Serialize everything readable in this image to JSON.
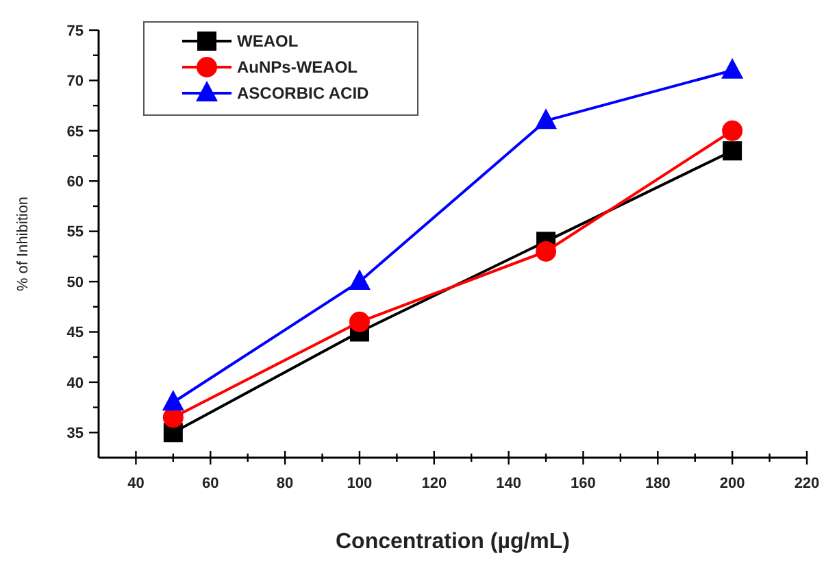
{
  "chart_data": {
    "type": "line",
    "xlabel": "Concentration (µg/mL)",
    "ylabel": "% of Inhibition",
    "x": [
      50,
      100,
      150,
      200
    ],
    "series": [
      {
        "name": "WEAOL",
        "color": "#000000",
        "marker": "square",
        "values": [
          35,
          45,
          54,
          63
        ]
      },
      {
        "name": "AuNPs-WEAOL",
        "color": "#ff0000",
        "marker": "circle",
        "values": [
          36.5,
          46,
          53,
          65
        ]
      },
      {
        "name": "ASCORBIC ACID",
        "color": "#0000ff",
        "marker": "triangle",
        "values": [
          38,
          50,
          66,
          71
        ]
      }
    ],
    "xlim": [
      30,
      220
    ],
    "xticks": [
      40,
      {
        "value": 50,
        "label": null
      },
      60,
      {
        "value": 70,
        "label": null
      },
      80,
      {
        "value": 90,
        "label": null
      },
      100,
      {
        "value": 110,
        "label": null
      },
      120,
      {
        "value": 130,
        "label": null
      },
      140,
      {
        "value": 150,
        "label": null
      },
      160,
      {
        "value": 170,
        "label": null
      },
      180,
      {
        "value": 190,
        "label": null
      },
      200,
      {
        "value": 210,
        "label": null
      },
      220
    ],
    "ylim": [
      32.5,
      75
    ],
    "yticks": [
      35,
      {
        "value": 37.5,
        "label": null
      },
      40,
      {
        "value": 42.5,
        "label": null
      },
      45,
      {
        "value": 47.5,
        "label": null
      },
      50,
      {
        "value": 52.5,
        "label": null
      },
      55,
      {
        "value": 57.5,
        "label": null
      },
      60,
      {
        "value": 62.5,
        "label": null
      },
      65,
      {
        "value": 67.5,
        "label": null
      },
      70,
      {
        "value": 72.5,
        "label": null
      },
      75
    ],
    "legend": "top left",
    "grid": false,
    "line_style": "solid"
  }
}
